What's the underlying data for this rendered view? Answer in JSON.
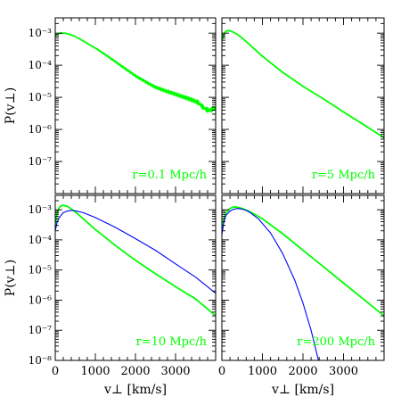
{
  "chart_data": [
    {
      "type": "line",
      "panel": "top-left",
      "annotation": "r=0.1 Mpc/h",
      "ylabel": "P(v⊥)",
      "xlabel": "",
      "xlim": [
        0,
        4000
      ],
      "ylim": [
        1e-08,
        0.003
      ],
      "yscale": "log",
      "series": [
        {
          "color": "#00ff00",
          "style": "noisy",
          "x": [
            0,
            50,
            100,
            150,
            200,
            250,
            300,
            400,
            500,
            700,
            1000,
            1500,
            2000,
            2500,
            3000,
            3500,
            3900,
            4000
          ],
          "y": [
            0.00085,
            0.00093,
            0.00098,
            0.001,
            0.001,
            0.00099,
            0.00096,
            0.00088,
            0.00078,
            0.00057,
            0.00034,
            0.00013,
            5e-05,
            2.2e-05,
            1.2e-05,
            6.5e-06,
            4.2e-06,
            3.8e-06
          ]
        }
      ]
    },
    {
      "type": "line",
      "panel": "top-right",
      "annotation": "r=5 Mpc/h",
      "ylabel": "",
      "xlabel": "",
      "xlim": [
        0,
        4000
      ],
      "ylim": [
        1e-08,
        0.003
      ],
      "yscale": "log",
      "series": [
        {
          "color": "#00ff00",
          "x": [
            0,
            50,
            100,
            150,
            200,
            250,
            300,
            400,
            500,
            700,
            1000,
            1500,
            2000,
            2500,
            3000,
            3500,
            4000
          ],
          "y": [
            0.0006,
            0.00095,
            0.00115,
            0.0012,
            0.00118,
            0.00112,
            0.00105,
            0.00088,
            0.0007,
            0.00042,
            0.00019,
            6e-05,
            2.2e-05,
            9e-06,
            3.5e-06,
            1.4e-06,
            5.5e-07
          ]
        }
      ]
    },
    {
      "type": "line",
      "panel": "bottom-left",
      "annotation": "r=10 Mpc/h",
      "ylabel": "P(v⊥)",
      "xlabel": "v⊥ [km/s]",
      "xlim": [
        0,
        4000
      ],
      "ylim": [
        1e-08,
        0.003
      ],
      "yscale": "log",
      "series": [
        {
          "color": "#00ff00",
          "x": [
            0,
            50,
            100,
            150,
            200,
            250,
            300,
            400,
            500,
            700,
            1000,
            1500,
            2000,
            2500,
            3000,
            3500,
            4000
          ],
          "y": [
            0.0003,
            0.0008,
            0.0012,
            0.00135,
            0.0014,
            0.00135,
            0.0013,
            0.00105,
            0.00085,
            0.0005,
            0.00022,
            6.5e-05,
            2.1e-05,
            7.5e-06,
            2.8e-06,
            1.1e-06,
            3e-07
          ]
        },
        {
          "color": "#0000ff",
          "x": [
            0,
            50,
            100,
            200,
            300,
            400,
            500,
            700,
            1000,
            1500,
            2000,
            2500,
            3000,
            3500,
            4000
          ],
          "y": [
            0.0002,
            0.0004,
            0.00055,
            0.0008,
            0.0009,
            0.00095,
            0.00092,
            0.0008,
            0.00055,
            0.00026,
            0.00011,
            4.5e-05,
            1.6e-05,
            5.8e-06,
            1.7e-06
          ]
        }
      ]
    },
    {
      "type": "line",
      "panel": "bottom-right",
      "annotation": "r=200 Mpc/h",
      "ylabel": "",
      "xlabel": "v⊥ [km/s]",
      "xlim": [
        0,
        4000
      ],
      "ylim": [
        1e-08,
        0.003
      ],
      "yscale": "log",
      "series": [
        {
          "color": "#00ff00",
          "x": [
            0,
            50,
            100,
            200,
            300,
            400,
            500,
            700,
            1000,
            1500,
            2000,
            2500,
            3000,
            3500,
            4000
          ],
          "y": [
            0.0002,
            0.0005,
            0.0008,
            0.0011,
            0.00125,
            0.0012,
            0.0011,
            0.00085,
            0.0005,
            0.00016,
            4.5e-05,
            1.3e-05,
            3.7e-06,
            1.05e-06,
            3e-07
          ]
        },
        {
          "color": "#0000ff",
          "x": [
            0,
            50,
            100,
            200,
            300,
            400,
            500,
            600,
            700,
            900,
            1200,
            1500,
            1800,
            2000,
            2200,
            2400
          ],
          "y": [
            0.00015,
            0.0004,
            0.00065,
            0.0009,
            0.00105,
            0.0011,
            0.00105,
            0.00095,
            0.0008,
            0.0005,
            0.00017,
            3.5e-05,
            4.5e-06,
            8e-07,
            1e-07,
            8e-09
          ]
        }
      ]
    }
  ],
  "axes": {
    "y_tick_labels": [
      "10⁻³",
      "10⁻⁴",
      "10⁻⁵",
      "10⁻⁶",
      "10⁻⁷"
    ],
    "y_bottom_label": "10⁻⁸",
    "x_tick_labels": [
      "0",
      "1000",
      "2000",
      "3000"
    ]
  }
}
